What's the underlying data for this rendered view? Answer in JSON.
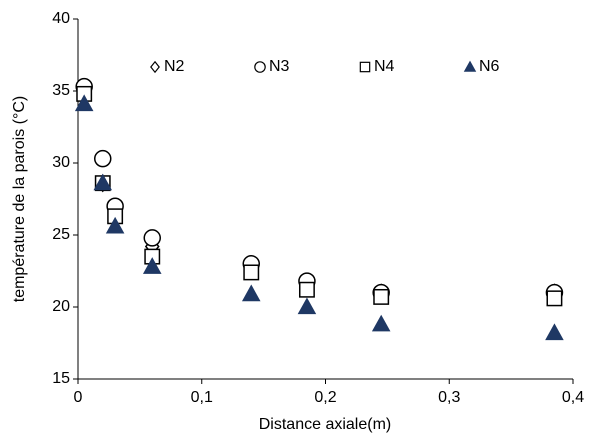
{
  "chart_data": {
    "type": "scatter",
    "x_label": "Distance axiale(m)",
    "y_label": "température de la parois (°C)",
    "x": [
      0.005,
      0.02,
      0.03,
      0.06,
      0.14,
      0.185,
      0.245,
      0.385
    ],
    "series": [
      {
        "name": "N2",
        "marker": "diamond",
        "color": "#000000",
        "filled": false,
        "values": [
          34.8,
          28.6,
          26.6,
          24.2,
          22.8,
          21.5,
          21.0,
          21.0
        ]
      },
      {
        "name": "N3",
        "marker": "circle",
        "color": "#000000",
        "filled": false,
        "values": [
          35.3,
          30.3,
          27.0,
          24.8,
          23.0,
          21.8,
          21.0,
          21.0
        ]
      },
      {
        "name": "N4",
        "marker": "square",
        "color": "#000000",
        "filled": false,
        "values": [
          34.8,
          28.6,
          26.3,
          23.5,
          22.4,
          21.2,
          20.7,
          20.6
        ]
      },
      {
        "name": "N6",
        "marker": "triangle",
        "color": "#1f3864",
        "filled": true,
        "values": [
          34.1,
          28.6,
          25.6,
          22.8,
          20.9,
          20.0,
          18.8,
          18.2
        ]
      }
    ],
    "xlim": [
      0,
      0.4
    ],
    "xticks": [
      0,
      {
        "value": 0.1,
        "label": "0,1"
      },
      {
        "value": 0.2,
        "label": "0,2"
      },
      {
        "value": 0.3,
        "label": "0,3"
      },
      {
        "value": 0.4,
        "label": "0,4"
      }
    ],
    "ylim": [
      15,
      40
    ],
    "yticks": [
      15,
      20,
      25,
      30,
      35,
      40
    ],
    "grid": false,
    "legend": "top"
  }
}
